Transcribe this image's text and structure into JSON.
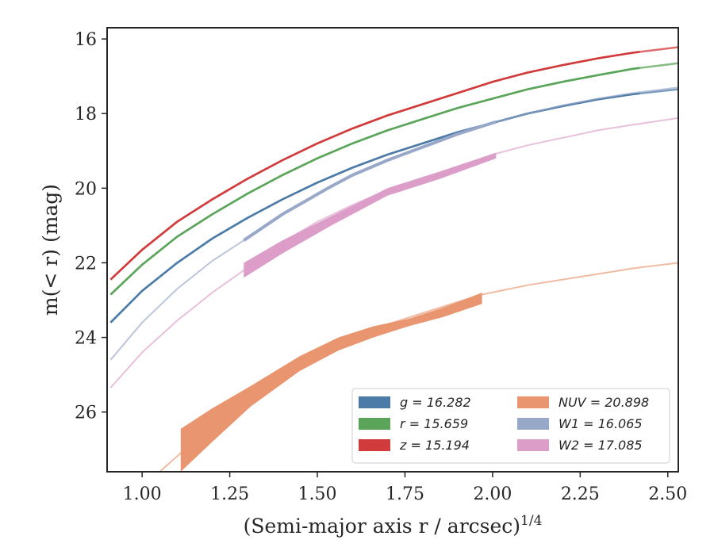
{
  "chart_data": {
    "type": "line",
    "title": "",
    "xlabel": "(Semi-major axis r / arcsec)",
    "xlabel_superscript": "1/4",
    "ylabel": "m(< r) (mag)",
    "xlim": [
      0.9,
      2.53
    ],
    "ylim": [
      27.6,
      15.7
    ],
    "y_inverted": true,
    "xticks": [
      "1.00",
      "1.25",
      "1.50",
      "1.75",
      "2.00",
      "2.25",
      "2.50"
    ],
    "yticks": [
      "16",
      "18",
      "20",
      "22",
      "24",
      "26"
    ],
    "grid": false,
    "legend_position": "lower-right",
    "series": [
      {
        "name": "g = 16.282",
        "color": "#4c7ba8",
        "x": [
          0.91,
          1.0,
          1.1,
          1.2,
          1.3,
          1.4,
          1.5,
          1.6,
          1.7,
          1.8,
          1.9,
          2.0,
          2.1,
          2.2,
          2.3,
          2.4,
          2.53
        ],
        "y": [
          23.6,
          22.75,
          22.0,
          21.35,
          20.8,
          20.3,
          19.85,
          19.45,
          19.1,
          18.8,
          18.5,
          18.25,
          18.0,
          17.8,
          17.62,
          17.48,
          17.35
        ]
      },
      {
        "name": "r = 15.659",
        "color": "#5aa55a",
        "x": [
          0.91,
          1.0,
          1.1,
          1.2,
          1.3,
          1.4,
          1.5,
          1.6,
          1.7,
          1.8,
          1.9,
          2.0,
          2.1,
          2.2,
          2.3,
          2.4,
          2.53
        ],
        "y": [
          22.85,
          22.05,
          21.3,
          20.7,
          20.15,
          19.65,
          19.2,
          18.8,
          18.45,
          18.15,
          17.85,
          17.6,
          17.35,
          17.15,
          16.97,
          16.8,
          16.65
        ]
      },
      {
        "name": "z = 15.194",
        "color": "#d13b3b",
        "x": [
          0.91,
          1.0,
          1.1,
          1.2,
          1.3,
          1.4,
          1.5,
          1.6,
          1.7,
          1.8,
          1.9,
          2.0,
          2.1,
          2.2,
          2.3,
          2.4,
          2.53
        ],
        "y": [
          22.45,
          21.65,
          20.9,
          20.3,
          19.75,
          19.25,
          18.8,
          18.4,
          18.05,
          17.75,
          17.45,
          17.15,
          16.9,
          16.7,
          16.52,
          16.37,
          16.22
        ]
      },
      {
        "name": "NUV = 20.898",
        "color": "#e99670",
        "x": [
          1.05,
          1.11,
          1.2,
          1.3,
          1.4,
          1.5,
          1.6,
          1.7,
          1.8,
          1.9,
          1.97,
          2.1,
          2.2,
          2.3,
          2.4,
          2.53
        ],
        "y": [
          27.6,
          27.1,
          26.4,
          25.6,
          25.0,
          24.45,
          24.0,
          23.65,
          23.35,
          23.05,
          22.85,
          22.6,
          22.45,
          22.3,
          22.15,
          22.0
        ],
        "band_x": [
          1.11,
          1.2,
          1.31,
          1.45,
          1.56,
          1.66,
          1.76,
          1.86,
          1.97
        ],
        "band_upper": [
          26.45,
          25.9,
          25.3,
          24.5,
          24.0,
          23.7,
          23.5,
          23.2,
          22.8
        ],
        "band_lower": [
          27.6,
          26.8,
          25.85,
          24.9,
          24.35,
          24.0,
          23.7,
          23.45,
          23.1
        ],
        "band_end": 1.97
      },
      {
        "name": "W1 = 16.065",
        "color": "#98a8c8",
        "x": [
          0.91,
          1.0,
          1.1,
          1.2,
          1.29,
          1.4,
          1.53,
          1.6,
          1.7,
          1.8,
          1.9,
          2.0,
          2.1,
          2.2,
          2.3,
          2.4,
          2.53
        ],
        "y": [
          24.6,
          23.6,
          22.7,
          21.95,
          21.4,
          20.7,
          20.0,
          19.65,
          19.25,
          18.9,
          18.55,
          18.25,
          18.0,
          17.78,
          17.6,
          17.45,
          17.3
        ],
        "thick_from": 1.29,
        "thick_to": 2.01
      },
      {
        "name": "W2 = 17.085",
        "color": "#dc9ec8",
        "x": [
          0.91,
          1.0,
          1.1,
          1.2,
          1.29,
          1.4,
          1.5,
          1.6,
          1.7,
          1.8,
          1.9,
          2.0,
          2.1,
          2.2,
          2.3,
          2.4,
          2.53
        ],
        "y": [
          25.35,
          24.4,
          23.55,
          22.8,
          22.2,
          21.45,
          20.9,
          20.45,
          20.05,
          19.75,
          19.45,
          19.1,
          18.85,
          18.65,
          18.45,
          18.3,
          18.12
        ],
        "band_x": [
          1.29,
          1.4,
          1.54,
          1.7,
          1.85,
          2.01
        ],
        "band_upper": [
          22.0,
          21.4,
          20.75,
          20.0,
          19.55,
          19.05
        ],
        "band_lower": [
          22.4,
          21.75,
          21.0,
          20.2,
          19.75,
          19.2
        ],
        "band_end": 2.01
      }
    ]
  }
}
